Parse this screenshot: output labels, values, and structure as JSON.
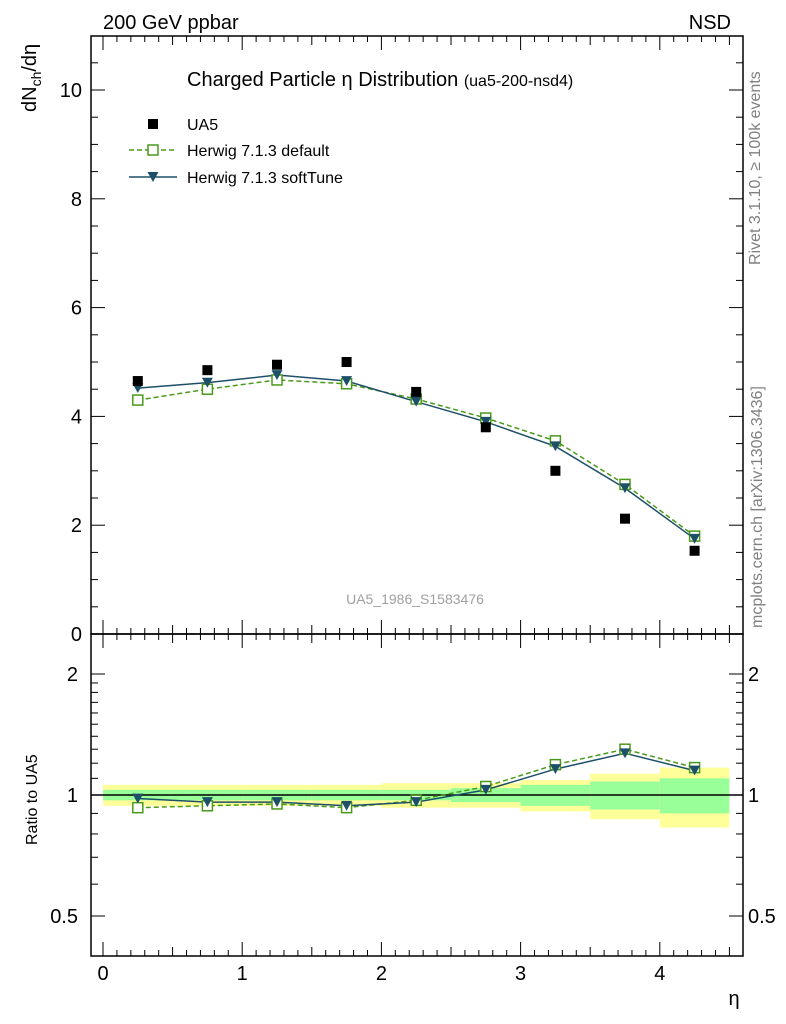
{
  "header": {
    "left": "200 GeV ppbar",
    "right": "NSD"
  },
  "side_text": {
    "rivet": "Rivet 3.1.10, ≥ 100k events",
    "mcplots": "mcplots.cern.ch [arXiv:1306.3436]"
  },
  "chart_data": {
    "type": "scatter",
    "title": "Charged Particle",
    "title_symbol": "η",
    "title_suffix": " Distribution",
    "title_tag": "(ua5-200-nsd4)",
    "watermark": "UA5_1986_S1583476",
    "xlabel": "η",
    "ylabel_main": "dN",
    "ylabel_sub": "ch",
    "ylabel_tail": "/dη",
    "ylabel_ratio": "Ratio to UA5",
    "xlim": [
      0,
      4.5
    ],
    "ylim": [
      0,
      11
    ],
    "ratio_ylim": [
      0.4,
      2.3
    ],
    "xticks": [
      "0",
      "1",
      "2",
      "3",
      "4"
    ],
    "yticks": [
      "0",
      "2",
      "4",
      "6",
      "8",
      "10"
    ],
    "ratio_yticks": [
      "0.5",
      "1",
      "2"
    ],
    "x": [
      0.25,
      0.75,
      1.25,
      1.75,
      2.25,
      2.75,
      3.25,
      3.75,
      4.25
    ],
    "series": [
      {
        "name": "UA5",
        "values": [
          4.65,
          4.85,
          4.95,
          5.0,
          4.45,
          3.8,
          3.0,
          2.12,
          1.53
        ],
        "color": "#000000"
      },
      {
        "name": "Herwig 7.1.3 default",
        "values": [
          4.3,
          4.5,
          4.67,
          4.6,
          4.32,
          3.97,
          3.55,
          2.75,
          1.8
        ],
        "color": "#4a9a19"
      },
      {
        "name": "Herwig 7.1.3 softTune",
        "values": [
          4.52,
          4.62,
          4.76,
          4.65,
          4.27,
          3.9,
          3.45,
          2.68,
          1.75
        ],
        "color": "#1d5068"
      }
    ],
    "ratio_series": [
      {
        "name": "Herwig 7.1.3 default",
        "values": [
          0.93,
          0.94,
          0.95,
          0.93,
          0.97,
          1.05,
          1.19,
          1.3,
          1.17
        ]
      },
      {
        "name": "Herwig 7.1.3 softTune",
        "values": [
          0.98,
          0.96,
          0.96,
          0.94,
          0.96,
          1.03,
          1.16,
          1.27,
          1.15
        ]
      }
    ],
    "band_x_edges": [
      0,
      0.5,
      1.0,
      1.5,
      2.0,
      2.5,
      3.0,
      3.5,
      4.0,
      4.5
    ],
    "band_yellow": [
      0.06,
      0.06,
      0.06,
      0.06,
      0.07,
      0.07,
      0.09,
      0.13,
      0.17
    ],
    "band_green": [
      0.03,
      0.03,
      0.03,
      0.03,
      0.03,
      0.04,
      0.06,
      0.08,
      0.1
    ],
    "band_colors": {
      "yellow": "#ffff99",
      "green": "#99ff99"
    },
    "grid": false,
    "legend_position": "top-left"
  }
}
